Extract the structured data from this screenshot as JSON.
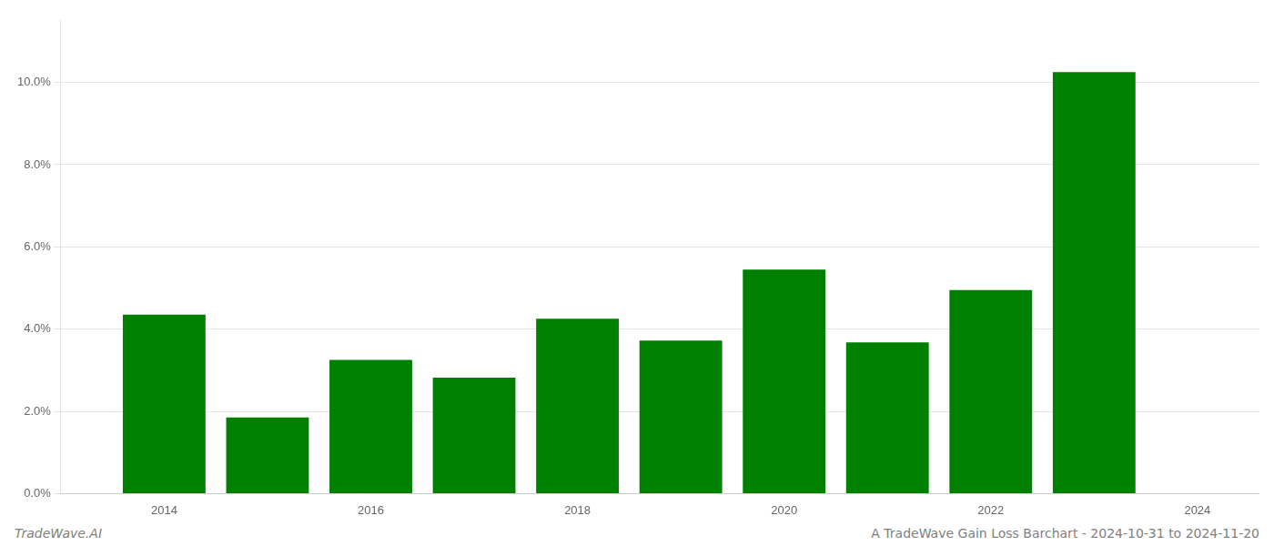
{
  "chart_data": {
    "type": "bar",
    "title": "A TradeWave Gain Loss Barchart - 2024-10-31 to 2024-11-20",
    "annotations": [
      "TradeWave.AI"
    ],
    "x": [
      2014,
      2015,
      2016,
      2017,
      2018,
      2019,
      2020,
      2021,
      2022,
      2023
    ],
    "values": [
      0.0435,
      0.0185,
      0.0325,
      0.0282,
      0.0425,
      0.0372,
      0.0545,
      0.0368,
      0.0495,
      0.1025
    ],
    "color": "#008000",
    "xlim": [
      2013.0,
      2024.6
    ],
    "xticks": [
      2014,
      2016,
      2018,
      2020,
      2022,
      2024
    ],
    "ylim": [
      0,
      0.115
    ],
    "yticks": [
      {
        "value": 0.0,
        "label": "0.0%"
      },
      {
        "value": 0.02,
        "label": "2.0%"
      },
      {
        "value": 0.04,
        "label": "4.0%"
      },
      {
        "value": 0.06,
        "label": "6.0%"
      },
      {
        "value": 0.08,
        "label": "8.0%"
      },
      {
        "value": 0.1,
        "label": "10.0%"
      }
    ],
    "grid": true
  }
}
